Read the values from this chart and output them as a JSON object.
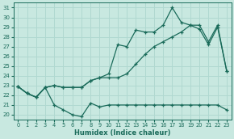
{
  "xlabel": "Humidex (Indice chaleur)",
  "bg_color": "#c8e8e0",
  "grid_color": "#b0d8d0",
  "line_color": "#1a6b5a",
  "xlim": [
    -0.5,
    23.5
  ],
  "ylim": [
    19.5,
    31.5
  ],
  "xticks": [
    0,
    1,
    2,
    3,
    4,
    5,
    6,
    7,
    8,
    9,
    10,
    11,
    12,
    13,
    14,
    15,
    16,
    17,
    18,
    19,
    20,
    21,
    22,
    23
  ],
  "yticks": [
    20,
    21,
    22,
    23,
    24,
    25,
    26,
    27,
    28,
    29,
    30,
    31
  ],
  "series1_y": [
    22.9,
    22.2,
    21.8,
    22.8,
    21.0,
    20.5,
    20.0,
    19.8,
    21.2,
    20.8,
    21.0,
    21.0,
    21.0,
    21.0,
    21.0,
    21.0,
    21.0,
    21.0,
    21.0,
    21.0,
    21.0,
    21.0,
    21.0,
    20.5
  ],
  "series2_y": [
    22.9,
    22.2,
    21.8,
    22.8,
    23.0,
    22.8,
    22.8,
    22.8,
    23.5,
    23.8,
    24.2,
    27.2,
    27.0,
    28.7,
    28.5,
    28.5,
    29.2,
    31.0,
    29.5,
    29.2,
    28.8,
    27.2,
    29.0,
    24.5
  ],
  "series3_y": [
    22.9,
    22.2,
    21.8,
    22.8,
    23.0,
    22.8,
    22.8,
    22.8,
    23.5,
    23.8,
    23.8,
    23.8,
    24.2,
    25.2,
    26.2,
    27.0,
    27.5,
    28.0,
    28.5,
    29.2,
    29.2,
    27.5,
    29.2,
    24.5
  ]
}
